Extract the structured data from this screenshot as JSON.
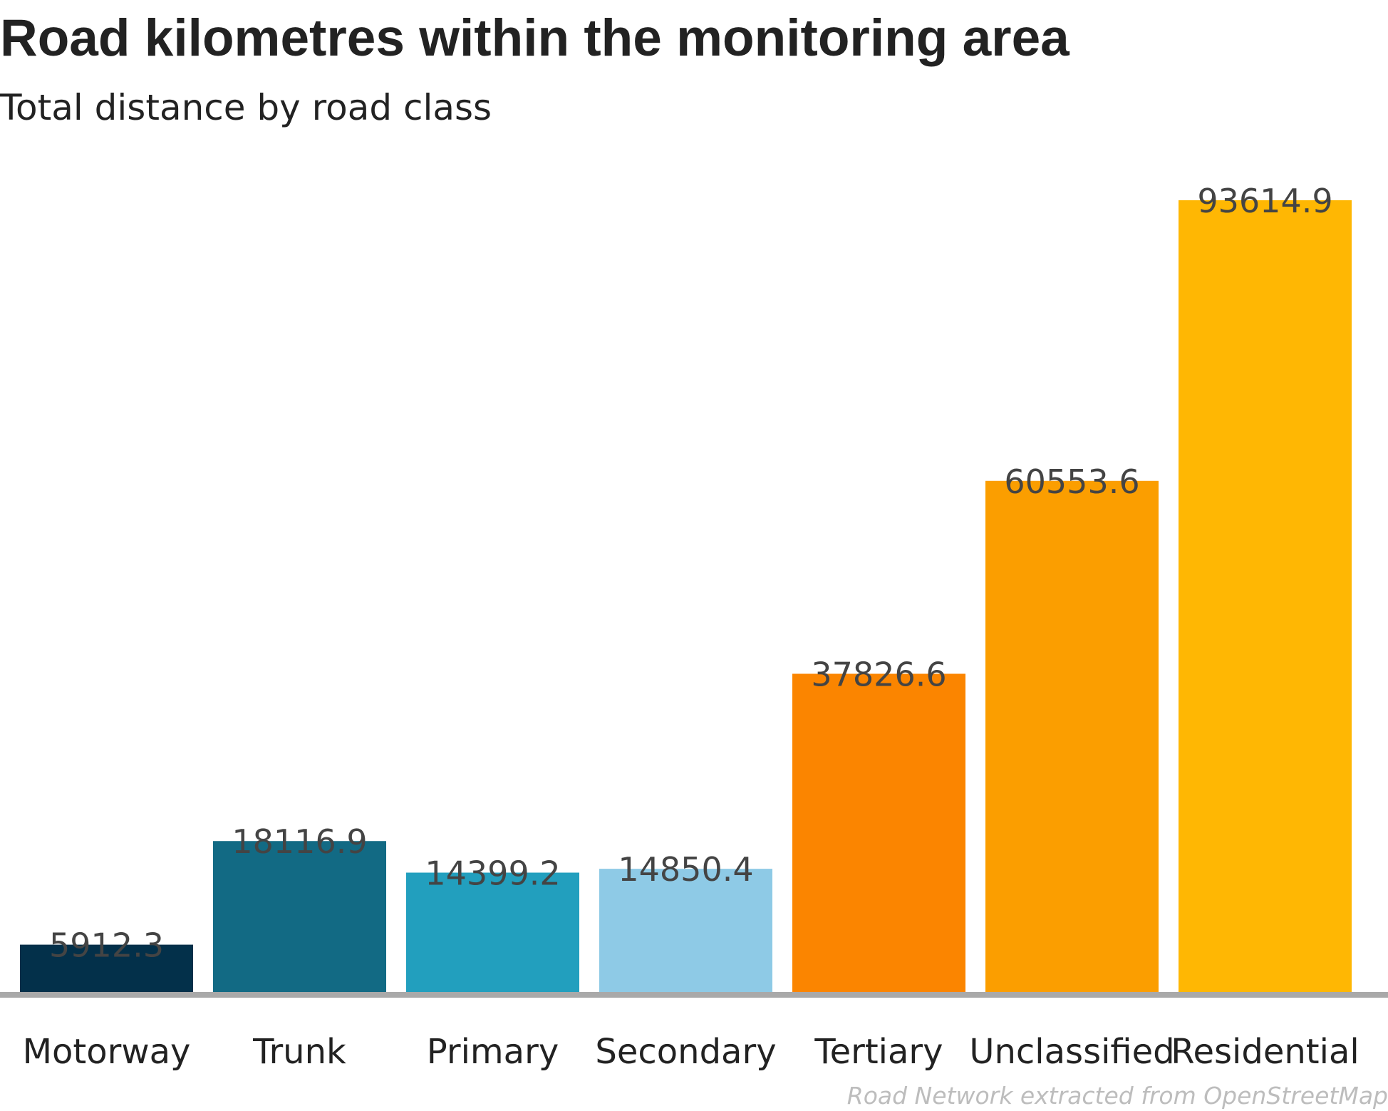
{
  "chart_data": {
    "type": "bar",
    "title": "Road kilometres within the monitoring area",
    "subtitle": "Total distance by road class",
    "xlabel": "",
    "ylabel": "",
    "categories": [
      "Motorway",
      "Trunk",
      "Primary",
      "Secondary",
      "Tertiary",
      "Unclassified",
      "Residential"
    ],
    "values": [
      5912.3,
      18116.9,
      14399.2,
      14850.4,
      37826.6,
      60553.6,
      93614.9
    ],
    "data_labels": [
      "5912.3",
      "18116.9",
      "14399.2",
      "14850.4",
      "37826.6",
      "60553.6",
      "93614.9"
    ],
    "colors": [
      "#03304a",
      "#126a84",
      "#229fbe",
      "#8ecae6",
      "#fb8500",
      "#fb9e00",
      "#ffb703"
    ],
    "ylim": [
      0,
      93614.9
    ],
    "grid": false,
    "legend": "none",
    "caption": "Road Network extracted from OpenStreetMap"
  }
}
